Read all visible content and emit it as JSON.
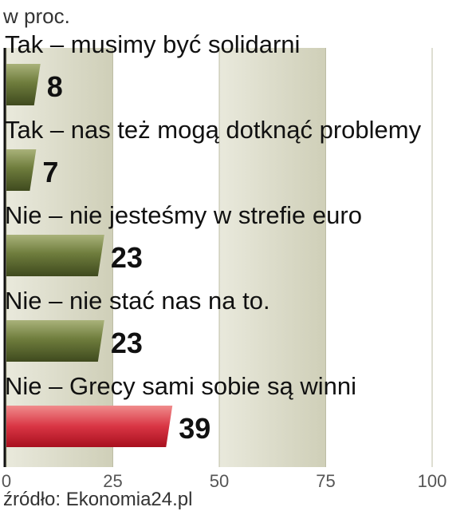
{
  "chart_data": {
    "type": "bar",
    "orientation": "horizontal",
    "unit_label": "w proc.",
    "categories": [
      "Tak – musimy być solidarni",
      "Tak –  nas też mogą dotknąć problemy",
      "Nie – nie jesteśmy w strefie euro",
      "Nie – nie stać nas na to.",
      "Nie – Grecy sami sobie są winni"
    ],
    "values": [
      8,
      7,
      23,
      23,
      39
    ],
    "highlight_index": 4,
    "xlim": [
      0,
      100
    ],
    "xticks": [
      0,
      25,
      50,
      75,
      100
    ],
    "grid": "alternating vertical bands",
    "colors": {
      "bar": "#6f7d3d",
      "bar_highlight": "#d93544",
      "value_highlight": "#c0152a",
      "band": "#dcdcc8"
    }
  },
  "source": "źródło: Ekonomia24.pl"
}
